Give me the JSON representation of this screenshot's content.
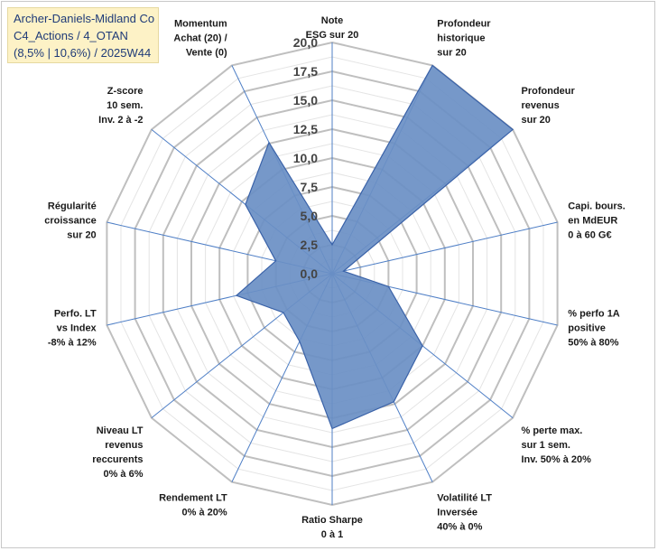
{
  "title": {
    "line1": "Archer-Daniels-Midland Co",
    "line2": "C4_Actions / 4_OTAN",
    "line3": "(8,5% | 10,6%) / 2025W44"
  },
  "chart_data": {
    "type": "radar",
    "rmax": 20,
    "ticks": [
      "0,0",
      "2,5",
      "5,0",
      "7,5",
      "10,0",
      "12,5",
      "15,0",
      "17,5",
      "20,0"
    ],
    "tick_values": [
      0,
      2.5,
      5,
      7.5,
      10,
      12.5,
      15,
      17.5,
      20
    ],
    "minor_step": 1.25,
    "axes": [
      {
        "lines": [
          "Note",
          "ESG sur 20"
        ],
        "value": 2.5
      },
      {
        "lines": [
          "Profondeur",
          "historique",
          "sur 20"
        ],
        "value": 20
      },
      {
        "lines": [
          "Profondeur",
          "revenus",
          "sur 20"
        ],
        "value": 20
      },
      {
        "lines": [
          "Capi. bours.",
          "en MdEUR",
          "0 à 60 G€"
        ],
        "value": 1
      },
      {
        "lines": [
          "% perfo 1A",
          "positive",
          "50% à 80%"
        ],
        "value": 5
      },
      {
        "lines": [
          "% perte max.",
          "sur 1 sem.",
          "Inv. 50% à 20%"
        ],
        "value": 10
      },
      {
        "lines": [
          "Volatilité LT",
          "Inversée",
          "40% à 0%"
        ],
        "value": 12.3
      },
      {
        "lines": [
          "Ratio Sharpe",
          "0 à 1"
        ],
        "value": 13.4
      },
      {
        "lines": [
          "Rendement LT",
          "0% à 20%"
        ],
        "value": 6.5
      },
      {
        "lines": [
          "Niveau LT",
          "revenus",
          "reccurents",
          "0% à 6%"
        ],
        "value": 5.4
      },
      {
        "lines": [
          "Perfo. LT",
          "vs Index",
          "-8% à 12%"
        ],
        "value": 8.5
      },
      {
        "lines": [
          "Régularité",
          "croissance",
          "sur 20"
        ],
        "value": 5
      },
      {
        "lines": [
          "Z-score",
          "10 sem.",
          "Inv. 2 à -2"
        ],
        "value": 9.6
      },
      {
        "lines": [
          "Momentum",
          "Achat (20) /",
          "Vente (0)"
        ],
        "value": 12.6
      }
    ],
    "colors": {
      "fill": "#6a8fc4",
      "stroke": "#3a62a8",
      "grid_major": "#bfbfbf",
      "grid_minor": "#e4e4e4",
      "spoke": "#4f7fc6"
    }
  }
}
